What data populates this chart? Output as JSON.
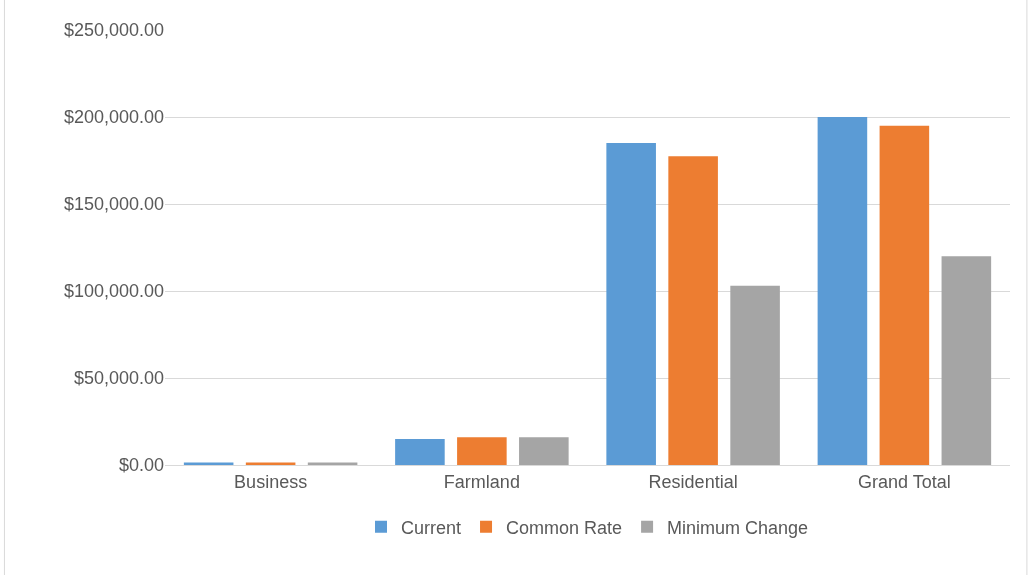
{
  "chart_data": {
    "type": "bar",
    "categories": [
      "Business",
      "Farmland",
      "Residential",
      "Grand Total"
    ],
    "series": [
      {
        "name": "Current",
        "color": "#5b9bd5",
        "values": [
          1500,
          15000,
          185000,
          200000
        ]
      },
      {
        "name": "Common Rate",
        "color": "#ed7d31",
        "values": [
          1500,
          16000,
          177500,
          195000
        ]
      },
      {
        "name": "Minimum Change",
        "color": "#a5a5a5",
        "values": [
          1500,
          16000,
          103000,
          120000
        ]
      }
    ],
    "ylim": [
      0,
      250000
    ],
    "yticks": [
      {
        "value": 0,
        "label": "$0.00"
      },
      {
        "value": 50000,
        "label": "$50,000.00"
      },
      {
        "value": 100000,
        "label": "$100,000.00"
      },
      {
        "value": 150000,
        "label": "$150,000.00"
      },
      {
        "value": 200000,
        "label": "$200,000.00"
      },
      {
        "value": 250000,
        "label": "$250,000.00"
      }
    ],
    "grid": "y",
    "legend": "bottom"
  }
}
